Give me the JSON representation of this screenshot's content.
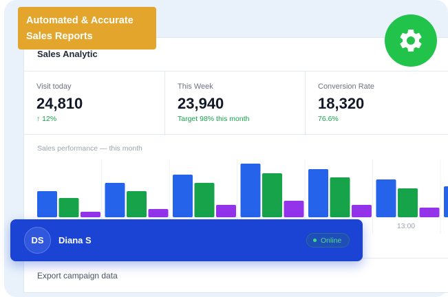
{
  "badge": {
    "line1": "Automated & Accurate",
    "line2": "Sales Reports"
  },
  "header": {
    "title": "Sales Analytic"
  },
  "stats": [
    {
      "label": "Visit today",
      "value": "24,810",
      "sub": "↑ 12%"
    },
    {
      "label": "This Week",
      "value": "23,940",
      "sub": "Target 98% this month"
    },
    {
      "label": "Conversion Rate",
      "value": "18,320",
      "sub": "76.6%"
    }
  ],
  "chart_data": {
    "type": "bar",
    "title": "Sales performance — this month",
    "categories": [
      "",
      "",
      "",
      "",
      "",
      "",
      ""
    ],
    "series": [
      {
        "values": [
          38,
          50,
          62,
          78,
          70,
          55,
          45
        ],
        "color": "#2563eb"
      },
      {
        "values": [
          28,
          38,
          50,
          64,
          58,
          42,
          0
        ],
        "color": "#16a34a"
      },
      {
        "values": [
          8,
          12,
          18,
          24,
          18,
          14,
          0
        ],
        "color": "#9333ea"
      }
    ],
    "tick_labels": [
      "13:00"
    ],
    "ylim": [
      0,
      80
    ]
  },
  "user": {
    "initials": "DS",
    "name": "Diana S",
    "status": "Online"
  },
  "footer": {
    "link": "Export campaign data"
  },
  "icons": {
    "settings": "gear-icon"
  },
  "colors": {
    "accent": "#1c44d4",
    "badge": "#e3a52b",
    "gear": "#21c34a",
    "positive": "#16a34a"
  }
}
